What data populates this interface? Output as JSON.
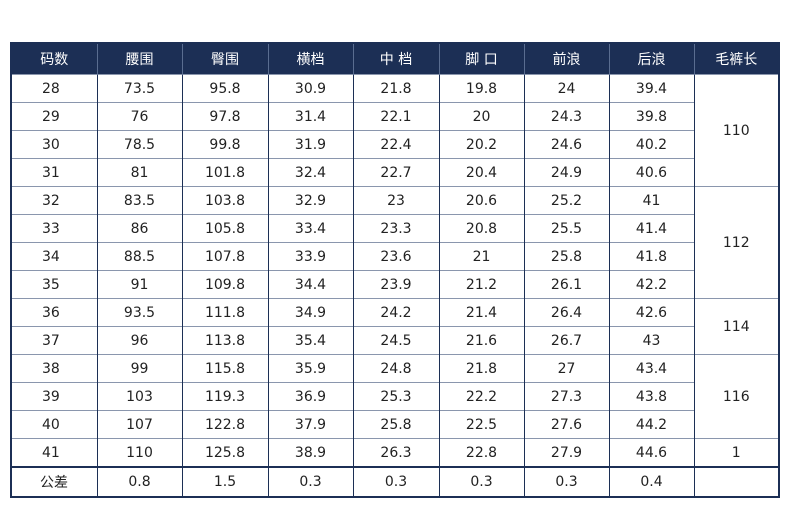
{
  "headers": [
    "码数",
    "腰围",
    "臀围",
    "横档",
    "中 档",
    "脚 口",
    "前浪",
    "后浪",
    "毛裤长"
  ],
  "rows": [
    [
      "28",
      "73.5",
      "95.8",
      "30.9",
      "21.8",
      "19.8",
      "24",
      "39.4"
    ],
    [
      "29",
      "76",
      "97.8",
      "31.4",
      "22.1",
      "20",
      "24.3",
      "39.8"
    ],
    [
      "30",
      "78.5",
      "99.8",
      "31.9",
      "22.4",
      "20.2",
      "24.6",
      "40.2"
    ],
    [
      "31",
      "81",
      "101.8",
      "32.4",
      "22.7",
      "20.4",
      "24.9",
      "40.6"
    ],
    [
      "32",
      "83.5",
      "103.8",
      "32.9",
      "23",
      "20.6",
      "25.2",
      "41"
    ],
    [
      "33",
      "86",
      "105.8",
      "33.4",
      "23.3",
      "20.8",
      "25.5",
      "41.4"
    ],
    [
      "34",
      "88.5",
      "107.8",
      "33.9",
      "23.6",
      "21",
      "25.8",
      "41.8"
    ],
    [
      "35",
      "91",
      "109.8",
      "34.4",
      "23.9",
      "21.2",
      "26.1",
      "42.2"
    ],
    [
      "36",
      "93.5",
      "111.8",
      "34.9",
      "24.2",
      "21.4",
      "26.4",
      "42.6"
    ],
    [
      "37",
      "96",
      "113.8",
      "35.4",
      "24.5",
      "21.6",
      "26.7",
      "43"
    ],
    [
      "38",
      "99",
      "115.8",
      "35.9",
      "24.8",
      "21.8",
      "27",
      "43.4"
    ],
    [
      "39",
      "103",
      "119.3",
      "36.9",
      "25.3",
      "22.2",
      "27.3",
      "43.8"
    ],
    [
      "40",
      "107",
      "122.8",
      "37.9",
      "25.8",
      "22.5",
      "27.6",
      "44.2"
    ],
    [
      "41",
      "110",
      "125.8",
      "38.9",
      "26.3",
      "22.8",
      "27.9",
      "44.6"
    ]
  ],
  "lengths": [
    {
      "value": "110",
      "span": 4
    },
    {
      "value": "112",
      "span": 4
    },
    {
      "value": "114",
      "span": 2
    },
    {
      "value": "116",
      "span": 3
    },
    {
      "value": "1",
      "span": 1
    }
  ],
  "tolerance": [
    "公差",
    "0.8",
    "1.5",
    "0.3",
    "0.3",
    "0.3",
    "0.3",
    "0.4",
    ""
  ],
  "colors": {
    "header_bg": "#1c2f55",
    "header_text": "#ffffff",
    "grid_line": "#8a96ad"
  }
}
